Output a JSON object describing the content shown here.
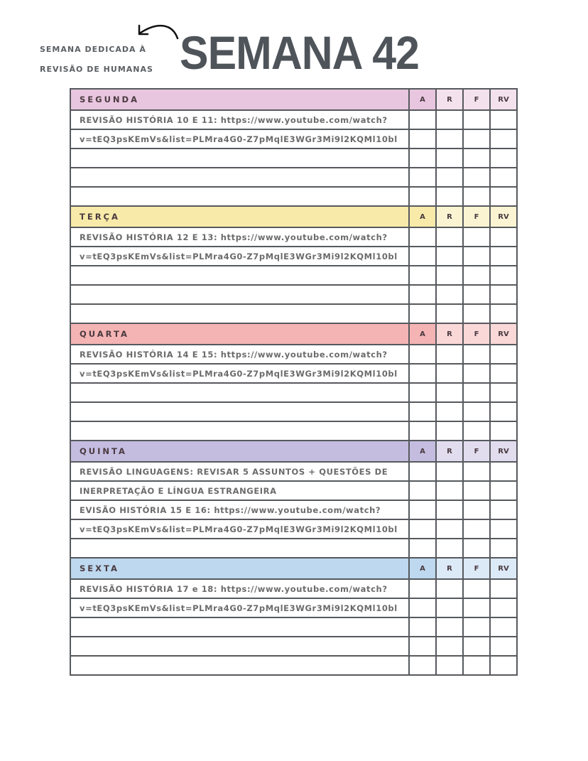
{
  "header": {
    "subtitle_line1": "SEMANA DEDICADA À",
    "subtitle_line2": "REVISÃO DE HUMANAS",
    "title": "SEMANA 42"
  },
  "columns": [
    "A",
    "R",
    "F",
    "RV"
  ],
  "days": [
    {
      "name": "SEGUNDA",
      "color": "#e9c6df",
      "tint": "#f3e2ee",
      "rows": [
        "REVISÃO HISTÓRIA 10 E 11: https://www.youtube.com/watch?",
        "v=tEQ3psKEmVs&list=PLMra4G0-Z7pMqlE3WGr3Mi9l2KQMl10bl",
        "",
        "",
        ""
      ]
    },
    {
      "name": "TERÇA",
      "color": "#f8eba9",
      "tint": "#fbf4d2",
      "rows": [
        "REVISÃO HISTÓRIA 12 E 13: https://www.youtube.com/watch?",
        "v=tEQ3psKEmVs&list=PLMra4G0-Z7pMqlE3WGr3Mi9l2KQMl10bl",
        "",
        "",
        ""
      ]
    },
    {
      "name": "QUARTA",
      "color": "#f5b4b4",
      "tint": "#fad8d8",
      "rows": [
        "REVISÃO HISTÓRIA 14 E 15: https://www.youtube.com/watch?",
        "v=tEQ3psKEmVs&list=PLMra4G0-Z7pMqlE3WGr3Mi9l2KQMl10bl",
        "",
        "",
        ""
      ]
    },
    {
      "name": "QUINTA",
      "color": "#c4bde0",
      "tint": "#e1ddef",
      "rows": [
        "REVISÃO LINGUAGENS: REVISAR 5 ASSUNTOS + QUESTÕES DE",
        "INERPRETAÇÃO E LÍNGUA ESTRANGEIRA",
        "EVISÃO HISTÓRIA 15 E 16: https://www.youtube.com/watch?",
        "v=tEQ3psKEmVs&list=PLMra4G0-Z7pMqlE3WGr3Mi9l2KQMl10bl",
        ""
      ]
    },
    {
      "name": "SEXTA",
      "color": "#bdd8ef",
      "tint": "#dce9f6",
      "rows": [
        "REVISÃO HISTÓRIA 17 e 18: https://www.youtube.com/watch?",
        "v=tEQ3psKEmVs&list=PLMra4G0-Z7pMqlE3WGr3Mi9l2KQMl10bl",
        "",
        "",
        ""
      ]
    }
  ]
}
